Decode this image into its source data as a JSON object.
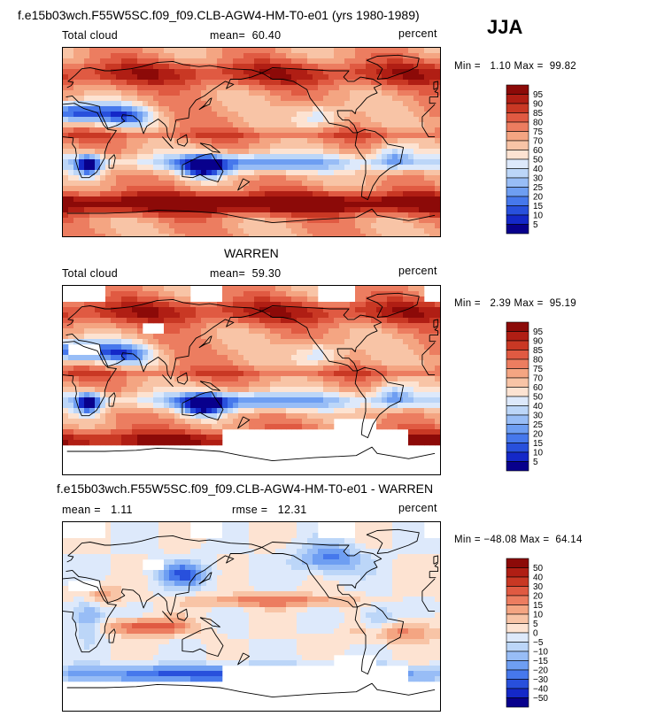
{
  "header": {
    "title": "f.e15b03wch.F55W5SC.f09_f09.CLB-AGW4-HM-T0-e01 (yrs 1980-1989)",
    "season": "JJA"
  },
  "colors": {
    "abs_scale": [
      "#08008c",
      "#1428c8",
      "#2850dc",
      "#4678ec",
      "#6e9ef2",
      "#98bdf6",
      "#bcd6f8",
      "#dde9fb",
      "#fde3d2",
      "#f8c4a6",
      "#f4a582",
      "#ec7d60",
      "#e05a42",
      "#c93824",
      "#b01e14",
      "#8c0a08"
    ],
    "diff_scale": [
      "#08008c",
      "#1428c8",
      "#2850dc",
      "#4678ec",
      "#6e9ef2",
      "#98bdf6",
      "#bcd6f8",
      "#dde9fb",
      "#fde3d2",
      "#f8c4a6",
      "#f4a582",
      "#ec7d60",
      "#e05a42",
      "#c93824",
      "#b01e14",
      "#8c0a08"
    ]
  },
  "chart_data": [
    {
      "type": "heatmap",
      "title": "Total cloud",
      "source": "f.e15b03wch.F55W5SC.f09_f09.CLB-AGW4-HM-T0-e01 (yrs 1980-1989)",
      "variable": "Total cloud",
      "units": "percent",
      "stats": {
        "mean_label": "mean=",
        "mean": "60.40",
        "min_label": "Min =",
        "min": "1.10",
        "max_label": "Max =",
        "max": "99.82"
      },
      "colorbar_levels": [
        "95",
        "90",
        "85",
        "80",
        "75",
        "70",
        "60",
        "50",
        "40",
        "30",
        "25",
        "20",
        "15",
        "10",
        "5"
      ]
    },
    {
      "type": "heatmap",
      "title": "WARREN",
      "variable": "Total cloud",
      "units": "percent",
      "stats": {
        "mean_label": "mean=",
        "mean": "59.30",
        "min_label": "Min =",
        "min": "2.39",
        "max_label": "Max =",
        "max": "95.19"
      },
      "colorbar_levels": [
        "95",
        "90",
        "85",
        "80",
        "75",
        "70",
        "60",
        "50",
        "40",
        "30",
        "25",
        "20",
        "15",
        "10",
        "5"
      ]
    },
    {
      "type": "heatmap",
      "title": "f.e15b03wch.F55W5SC.f09_f09.CLB-AGW4-HM-T0-e01 - WARREN",
      "units": "percent",
      "stats": {
        "mean_label": "mean =",
        "mean": "1.11",
        "rmse_label": "rmse =",
        "rmse": "12.31",
        "min_label": "Min =",
        "min": "−48.08",
        "max_label": "Max =",
        "max": "64.14"
      },
      "colorbar_levels": [
        "50",
        "40",
        "30",
        "20",
        "15",
        "10",
        "5",
        "0",
        "−5",
        "−10",
        "−15",
        "−20",
        "−30",
        "−40",
        "−50"
      ]
    }
  ]
}
